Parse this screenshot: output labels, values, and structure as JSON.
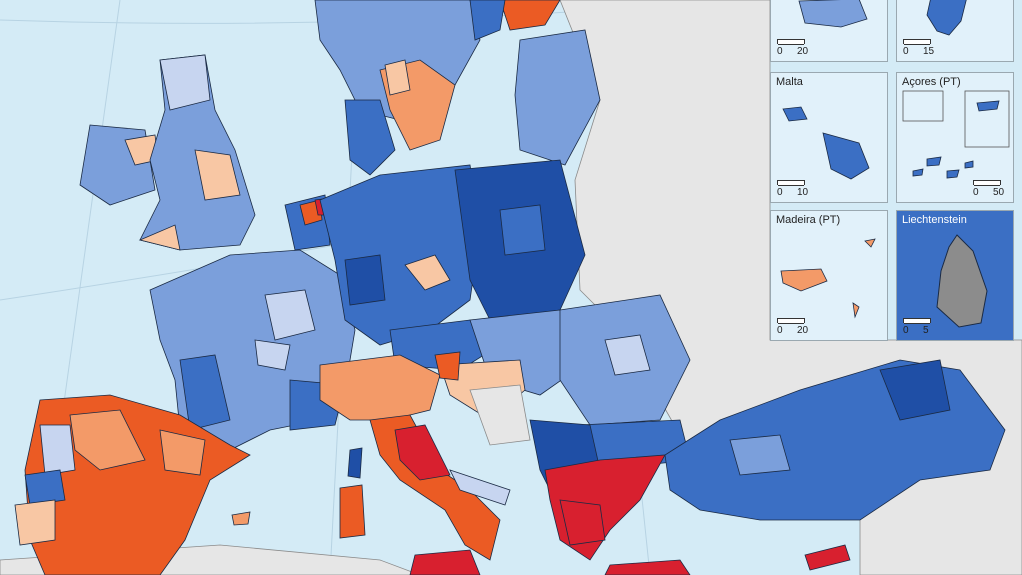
{
  "insets": [
    {
      "id": "top-left-partial",
      "title": "",
      "scale_start": "0",
      "scale_end": "20"
    },
    {
      "id": "top-right-partial",
      "title": "",
      "scale_start": "0",
      "scale_end": "15"
    },
    {
      "id": "malta",
      "title": "Malta",
      "scale_start": "0",
      "scale_end": "10"
    },
    {
      "id": "acores",
      "title": "Açores (PT)",
      "scale_start": "0",
      "scale_end": "50"
    },
    {
      "id": "madeira",
      "title": "Madeira (PT)",
      "scale_start": "0",
      "scale_end": "20"
    },
    {
      "id": "liechtenstein",
      "title": "Liechtenstein",
      "scale_start": "0",
      "scale_end": "5"
    }
  ],
  "colors": {
    "sea": "#d4ebf6",
    "non_eu": "#e6e6e6",
    "no_data": "#8c8c8c",
    "dark_blue": "#1f4fa6",
    "mid_blue": "#3b6fc4",
    "light_blue": "#7b9fdb",
    "pale_blue": "#c7d5f0",
    "pale_orange": "#f8c7a4",
    "light_orange": "#f39a68",
    "dark_orange": "#eb5b24",
    "red": "#d8202f"
  }
}
